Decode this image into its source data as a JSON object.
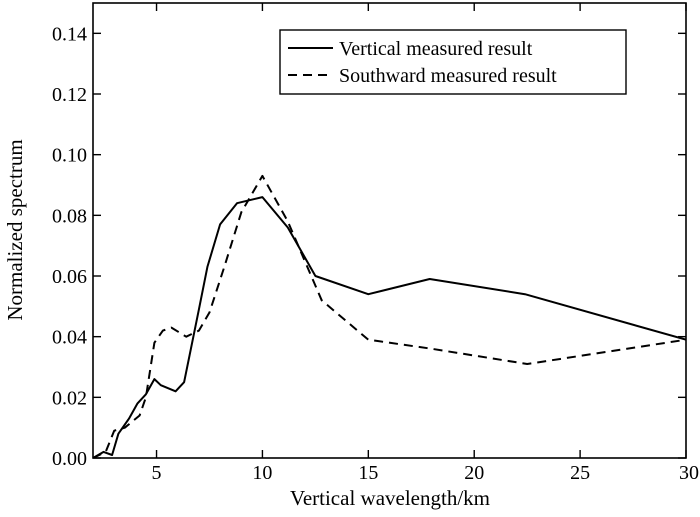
{
  "chart_data": {
    "type": "line",
    "title": "",
    "xlabel": "Vertical wavelength/km",
    "ylabel": "Normalized spectrum",
    "xlim": [
      2,
      30
    ],
    "ylim": [
      0,
      0.15
    ],
    "x_ticks": [
      5,
      10,
      15,
      20,
      25,
      30
    ],
    "x_tick_labels": [
      "5",
      "10",
      "15",
      "20",
      "25",
      "30"
    ],
    "y_ticks": [
      0,
      0.02,
      0.04,
      0.06,
      0.08,
      0.1,
      0.12,
      0.14
    ],
    "y_tick_labels": [
      "0.00",
      "0.02",
      "0.04",
      "0.06",
      "0.08",
      "0.10",
      "0.12",
      "0.14"
    ],
    "grid": false,
    "legend_position": "top-right",
    "series": [
      {
        "name": "Vertical measured result",
        "style": "solid",
        "color": "#000000",
        "points": [
          [
            2.0,
            0.0
          ],
          [
            2.5,
            0.002
          ],
          [
            2.9,
            0.001
          ],
          [
            3.2,
            0.008
          ],
          [
            3.7,
            0.013
          ],
          [
            4.1,
            0.018
          ],
          [
            4.5,
            0.021
          ],
          [
            4.9,
            0.026
          ],
          [
            5.2,
            0.024
          ],
          [
            5.9,
            0.022
          ],
          [
            6.3,
            0.025
          ],
          [
            7.0,
            0.049
          ],
          [
            7.4,
            0.063
          ],
          [
            8.0,
            0.077
          ],
          [
            8.8,
            0.084
          ],
          [
            10.0,
            0.086
          ],
          [
            11.2,
            0.076
          ],
          [
            12.5,
            0.06
          ],
          [
            15.0,
            0.054
          ],
          [
            17.9,
            0.059
          ],
          [
            22.4,
            0.054
          ],
          [
            30.0,
            0.039
          ]
        ]
      },
      {
        "name": "Southward measured result",
        "style": "dashed",
        "color": "#000000",
        "points": [
          [
            2.0,
            0.0
          ],
          [
            2.6,
            0.002
          ],
          [
            3.0,
            0.009
          ],
          [
            3.5,
            0.01
          ],
          [
            4.2,
            0.014
          ],
          [
            4.5,
            0.02
          ],
          [
            4.9,
            0.038
          ],
          [
            5.3,
            0.042
          ],
          [
            5.7,
            0.043
          ],
          [
            6.4,
            0.04
          ],
          [
            7.0,
            0.042
          ],
          [
            7.5,
            0.048
          ],
          [
            8.2,
            0.063
          ],
          [
            9.0,
            0.081
          ],
          [
            10.0,
            0.093
          ],
          [
            11.2,
            0.078
          ],
          [
            12.8,
            0.052
          ],
          [
            15.0,
            0.039
          ],
          [
            18.0,
            0.036
          ],
          [
            22.5,
            0.031
          ],
          [
            30.0,
            0.039
          ]
        ]
      }
    ]
  }
}
